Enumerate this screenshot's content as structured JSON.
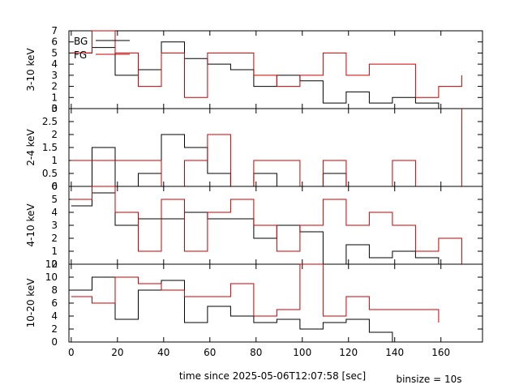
{
  "chart_data": {
    "type": "line",
    "step": true,
    "xlabel": "time since 2025-05-06T12:07:58 [sec]",
    "note": "binsize = 10s",
    "xlim": [
      -1,
      178
    ],
    "xticks": [
      0,
      20,
      40,
      60,
      80,
      100,
      120,
      140,
      160
    ],
    "colors": {
      "BG": "#000000",
      "FG": "#cc0000"
    },
    "legend": {
      "location": "top-left",
      "entries": [
        "BG",
        "FG"
      ]
    },
    "panels": [
      {
        "ylabel": "3-10 keV",
        "ylim": [
          0,
          7
        ],
        "yticks": [
          0,
          1,
          2,
          3,
          4,
          5,
          6,
          7
        ],
        "series": [
          {
            "name": "BG",
            "x": [
              0,
              9,
              19,
              29,
              39,
              49,
              59,
              69,
              79,
              89,
              99,
              109,
              119,
              129,
              139,
              149,
              159
            ],
            "values": [
              5.0,
              5.5,
              3.0,
              3.5,
              6.0,
              4.5,
              4.0,
              3.5,
              2.0,
              3.0,
              2.5,
              0.5,
              1.5,
              0.5,
              1.0,
              0.5,
              0.0
            ]
          },
          {
            "name": "FG",
            "x": [
              0,
              9,
              19,
              29,
              39,
              49,
              59,
              69,
              79,
              89,
              99,
              109,
              119,
              129,
              139,
              149,
              159,
              169
            ],
            "values": [
              5.0,
              7.0,
              5.0,
              2.0,
              5.0,
              1.0,
              5.0,
              5.0,
              3.0,
              2.0,
              3.0,
              5.0,
              3.0,
              4.0,
              4.0,
              1.0,
              2.0,
              3.0
            ]
          }
        ]
      },
      {
        "ylabel": "2-4 keV",
        "ylim": [
          0,
          3
        ],
        "yticks": [
          0,
          0.5,
          1,
          1.5,
          2,
          2.5,
          3
        ],
        "series": [
          {
            "name": "BG",
            "x": [
              0,
              9,
              19,
              29,
              39,
              49,
              59,
              69,
              79,
              89,
              99,
              109,
              119,
              129,
              139,
              149,
              159
            ],
            "values": [
              0.0,
              1.5,
              0.0,
              0.5,
              2.0,
              1.5,
              0.5,
              0.0,
              0.5,
              0.0,
              0.0,
              0.5,
              0.0,
              0.0,
              0.0,
              0.0,
              0.0
            ]
          },
          {
            "name": "FG",
            "x": [
              0,
              9,
              19,
              29,
              39,
              49,
              59,
              69,
              79,
              89,
              99,
              109,
              119,
              129,
              139,
              149,
              159,
              169
            ],
            "values": [
              1.0,
              1.0,
              1.0,
              1.0,
              0.0,
              1.0,
              2.0,
              0.0,
              1.0,
              1.0,
              0.0,
              1.0,
              0.0,
              0.0,
              1.0,
              0.0,
              0.0,
              3.0
            ]
          }
        ]
      },
      {
        "ylabel": "4-10 keV",
        "ylim": [
          0,
          6
        ],
        "yticks": [
          0,
          1,
          2,
          3,
          4,
          5,
          6
        ],
        "series": [
          {
            "name": "BG",
            "x": [
              0,
              9,
              19,
              29,
              39,
              49,
              59,
              69,
              79,
              89,
              99,
              109,
              119,
              129,
              139,
              149,
              159
            ],
            "values": [
              4.5,
              5.5,
              3.0,
              3.5,
              3.5,
              4.0,
              3.5,
              3.5,
              2.0,
              3.0,
              2.5,
              0.0,
              1.5,
              0.5,
              1.0,
              0.5,
              0.0
            ]
          },
          {
            "name": "FG",
            "x": [
              0,
              9,
              19,
              29,
              39,
              49,
              59,
              69,
              79,
              89,
              99,
              109,
              119,
              129,
              139,
              149,
              159,
              169
            ],
            "values": [
              5.0,
              6.0,
              4.0,
              1.0,
              5.0,
              1.0,
              4.0,
              5.0,
              3.0,
              1.0,
              3.0,
              5.0,
              3.0,
              4.0,
              3.0,
              1.0,
              2.0,
              0.0
            ]
          }
        ]
      },
      {
        "ylabel": "10-20 keV",
        "ylim": [
          0,
          12
        ],
        "yticks": [
          0,
          2,
          4,
          6,
          8,
          10,
          12
        ],
        "series": [
          {
            "name": "BG",
            "x": [
              0,
              9,
              19,
              29,
              39,
              49,
              59,
              69,
              79,
              89,
              99,
              109,
              119,
              129,
              139
            ],
            "values": [
              8.0,
              10.0,
              3.5,
              8.0,
              9.5,
              3.0,
              5.5,
              4.0,
              3.0,
              3.5,
              2.0,
              3.0,
              3.5,
              1.5,
              0.0
            ]
          },
          {
            "name": "FG",
            "x": [
              0,
              9,
              19,
              29,
              39,
              49,
              59,
              69,
              79,
              89,
              99,
              109,
              119,
              129,
              139,
              149,
              159
            ],
            "values": [
              7.0,
              6.0,
              10.0,
              9.0,
              8.0,
              7.0,
              7.0,
              9.0,
              4.0,
              5.0,
              12.0,
              4.0,
              7.0,
              5.0,
              5.0,
              5.0,
              3.0
            ]
          }
        ]
      }
    ]
  }
}
